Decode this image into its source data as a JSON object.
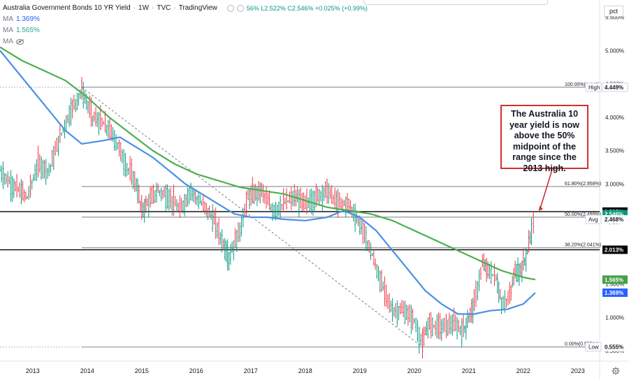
{
  "legend": {
    "symbol": "Australia Government Bonds 10 YR Yield",
    "interval": "1W",
    "source": "TVC",
    "platform": "TradingView",
    "ohlc_partial": "56% L2.522% C2.546% +0.025% (+0.99%)",
    "ma1_label": "MA",
    "ma1_value": "1.369%",
    "ma2_label": "MA",
    "ma2_value": "1.565%",
    "ma3_label": "MA"
  },
  "unit_button": "pct",
  "callout_text": "The Australia 10 year yield is now above the 50% midpoint of the range since the 2013 high.",
  "colors": {
    "up": "#089981",
    "down": "#f23645",
    "ma_blue": "#4a90e2",
    "ma_green": "#4caf50",
    "callout_border": "#d32f2f"
  },
  "chart_data": {
    "type": "candlestick",
    "title": "Australia Government Bonds 10 YR Yield · 1W · TVC",
    "x_labels": [
      "2013",
      "2014",
      "2015",
      "2016",
      "2017",
      "2018",
      "2019",
      "2020",
      "2021",
      "2022",
      "2023"
    ],
    "y_axis_labels": [
      "5.500%",
      "5.000%",
      "4.500%",
      "4.000%",
      "3.500%",
      "3.000%",
      "2.500%",
      "2.000%",
      "1.500%",
      "1.000%",
      "0.500%"
    ],
    "ylim": [
      0.5,
      5.6
    ],
    "scale": "linear",
    "price_series": {
      "x": [
        2012.4,
        2012.6,
        2012.9,
        2013.1,
        2013.3,
        2013.5,
        2013.7,
        2013.9,
        2014.1,
        2014.3,
        2014.5,
        2014.7,
        2014.9,
        2015.0,
        2015.1,
        2015.3,
        2015.5,
        2015.7,
        2015.9,
        2016.1,
        2016.3,
        2016.5,
        2016.6,
        2016.8,
        2016.95,
        2017.2,
        2017.4,
        2017.6,
        2017.8,
        2018.0,
        2018.2,
        2018.4,
        2018.6,
        2018.8,
        2019.0,
        2019.2,
        2019.4,
        2019.6,
        2019.8,
        2020.0,
        2020.15,
        2020.25,
        2020.5,
        2020.7,
        2020.9,
        2021.0,
        2021.1,
        2021.25,
        2021.35,
        2021.5,
        2021.6,
        2021.75,
        2021.85,
        2021.95,
        2022.05,
        2022.15,
        2022.22
      ],
      "y": [
        3.2,
        3.0,
        2.8,
        3.3,
        3.2,
        3.7,
        4.1,
        4.4,
        4.0,
        3.9,
        3.7,
        3.3,
        3.0,
        2.6,
        2.7,
        2.9,
        2.8,
        2.6,
        2.9,
        2.7,
        2.5,
        2.1,
        1.9,
        2.3,
        2.8,
        2.9,
        2.6,
        2.7,
        2.8,
        2.7,
        2.8,
        2.9,
        2.7,
        2.7,
        2.4,
        2.0,
        1.5,
        1.1,
        1.1,
        0.95,
        0.58,
        0.9,
        0.85,
        0.9,
        0.8,
        1.0,
        1.2,
        1.8,
        1.7,
        1.6,
        1.2,
        1.3,
        1.7,
        1.7,
        1.9,
        2.3,
        2.546
      ]
    },
    "series": [
      {
        "name": "MA",
        "legend_value": "1.369%",
        "color": "#4a90e2",
        "x": [
          2012.4,
          2012.8,
          2013.2,
          2013.6,
          2013.9,
          2014.3,
          2014.6,
          2014.9,
          2015.2,
          2015.5,
          2015.8,
          2016.1,
          2016.4,
          2016.7,
          2017.0,
          2017.3,
          2017.6,
          2018.0,
          2018.4,
          2018.7,
          2019.0,
          2019.3,
          2019.6,
          2019.9,
          2020.2,
          2020.5,
          2020.8,
          2021.1,
          2021.4,
          2021.7,
          2022.0,
          2022.22
        ],
        "y": [
          5.0,
          4.6,
          4.2,
          3.8,
          3.6,
          3.65,
          3.7,
          3.55,
          3.4,
          3.2,
          3.0,
          2.85,
          2.7,
          2.55,
          2.5,
          2.5,
          2.47,
          2.45,
          2.5,
          2.6,
          2.5,
          2.3,
          2.0,
          1.7,
          1.4,
          1.2,
          1.05,
          1.05,
          1.1,
          1.12,
          1.2,
          1.369
        ]
      },
      {
        "name": "MA",
        "legend_value": "1.565%",
        "color": "#4caf50",
        "x": [
          2012.4,
          2012.8,
          2013.2,
          2013.6,
          2014.0,
          2014.4,
          2014.8,
          2015.2,
          2015.6,
          2016.0,
          2016.4,
          2016.8,
          2017.2,
          2017.6,
          2018.0,
          2018.4,
          2018.8,
          2019.2,
          2019.6,
          2020.0,
          2020.4,
          2020.8,
          2021.2,
          2021.6,
          2022.0,
          2022.22
        ],
        "y": [
          5.05,
          4.85,
          4.7,
          4.55,
          4.3,
          4.0,
          3.75,
          3.5,
          3.3,
          3.15,
          3.05,
          2.95,
          2.9,
          2.85,
          2.75,
          2.65,
          2.6,
          2.55,
          2.45,
          2.3,
          2.15,
          2.0,
          1.85,
          1.7,
          1.6,
          1.565
        ]
      }
    ],
    "fibonacci": [
      {
        "label": "100.00%(4.449)",
        "level_pct": 100
      },
      {
        "label": "61.80%(2.958%)",
        "level_pct": 61.8
      },
      {
        "label": "50.00%(2.499%)",
        "level_pct": 50
      },
      {
        "label": "38.20%(2.041%)",
        "level_pct": 38.2
      },
      {
        "label": "0.00%(0.555%)",
        "level_pct": 0
      }
    ],
    "price_tags": [
      {
        "text": "4.449%",
        "label": "High",
        "value": 4.449
      },
      {
        "text": "2.585%",
        "value": 2.585
      },
      {
        "text": "2.546%",
        "sub": "4d 23h",
        "value": 2.546
      },
      {
        "text": "2.468%",
        "label": "Avg",
        "value": 2.468
      },
      {
        "text": "2.013%",
        "value": 2.013
      },
      {
        "text": "1.565%",
        "value": 1.565
      },
      {
        "text": "1.369%",
        "value": 1.369
      },
      {
        "text": "0.555%",
        "label": "Low",
        "value": 0.555
      }
    ],
    "horizontal_lines": [
      2.585,
      2.013
    ],
    "trendline": {
      "from": [
        2013.9,
        4.449
      ],
      "to": [
        2020.15,
        0.555
      ]
    }
  }
}
